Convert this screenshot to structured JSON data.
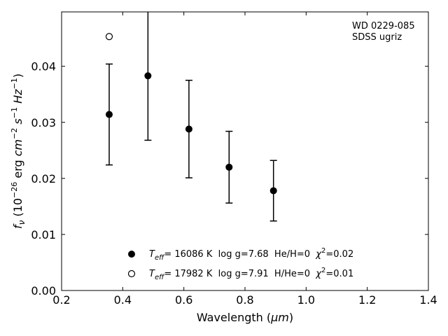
{
  "chart_data": {
    "type": "scatter",
    "xlabel_main": "Wavelength (",
    "xlabel_unit": "μm",
    "xlabel_close": ")",
    "ylabel_f": "f",
    "ylabel_sub": "ν",
    "ylabel_open": " (10",
    "ylabel_exp1": "−26",
    "ylabel_erg": " erg ",
    "ylabel_cm": "cm",
    "ylabel_exp2": "−2",
    "ylabel_s": " s",
    "ylabel_exp3": "−1",
    "ylabel_hz": " Hz",
    "ylabel_exp4": "−1",
    "ylabel_close": ")",
    "xlim": [
      0.2,
      1.4
    ],
    "ylim": [
      0.0,
      0.0497
    ],
    "xticks": [
      0.2,
      0.4,
      0.6,
      0.8,
      1.0,
      1.2,
      1.4
    ],
    "xtick_labels": [
      "0.2",
      "0.4",
      "0.6",
      "0.8",
      "1.0",
      "1.2",
      "1.4"
    ],
    "yticks": [
      0.0,
      0.01,
      0.02,
      0.03,
      0.04
    ],
    "ytick_labels": [
      "0.00",
      "0.01",
      "0.02",
      "0.03",
      "0.04"
    ],
    "grid": false,
    "annotation": [
      "WD 0229-085",
      "SDSS ugriz"
    ],
    "observed": {
      "x": [
        0.3557,
        0.4825,
        0.6166,
        0.748,
        0.8932
      ],
      "y": [
        0.0314,
        0.0383,
        0.0288,
        0.022,
        0.0178
      ],
      "err": [
        0.009,
        0.0115,
        0.0087,
        0.0064,
        0.0054
      ],
      "marker": "filled-circle"
    },
    "model_open": {
      "x": [
        0.3557
      ],
      "y": [
        0.0453
      ],
      "marker": "open-circle"
    },
    "legend": [
      {
        "marker": "filled-circle",
        "t": "T",
        "tsub": "eff",
        "rest": "= 16086 K  log g=7.68  He/H=0  ",
        "chi": "χ",
        "chisup": "2",
        "chival": "=0.02"
      },
      {
        "marker": "open-circle",
        "t": "T",
        "tsub": "eff",
        "rest": "= 17982 K  log g=7.91  H/He=0  ",
        "chi": "χ",
        "chisup": "2",
        "chival": "=0.01"
      }
    ],
    "colors": {
      "marker": "#000000",
      "axes": "#000000",
      "background": "#ffffff"
    }
  }
}
